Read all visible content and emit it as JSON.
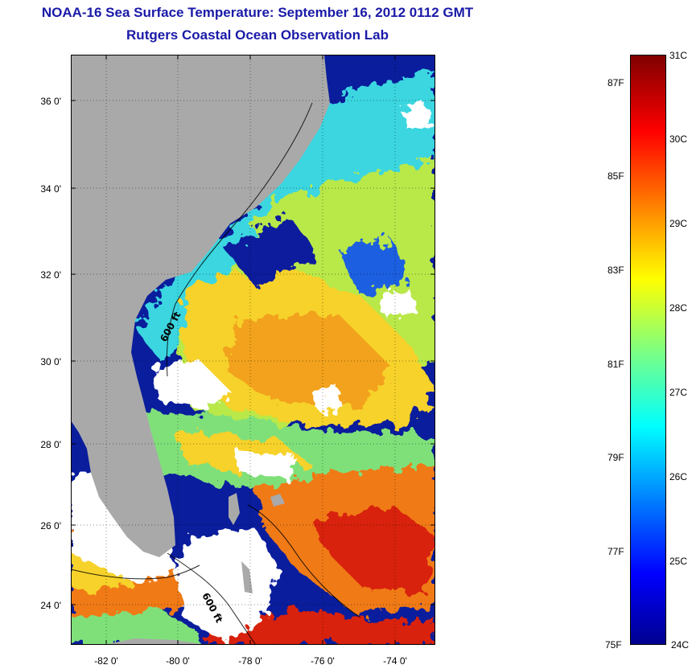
{
  "title": {
    "line1": "NOAA-16 Sea Surface Temperature:  September 16, 2012 0112 GMT",
    "line2": "Rutgers Coastal Ocean Observation Lab"
  },
  "map": {
    "lat_ticks": [
      "36 0'",
      "34 0'",
      "32 0'",
      "30 0'",
      "28 0'",
      "26 0'",
      "24 0'"
    ],
    "lon_ticks": [
      "-82 0'",
      "-80 0'",
      "-78 0'",
      "-76 0'",
      "-74 0'"
    ],
    "contour_labels": [
      "600 ft",
      "600 ft"
    ],
    "colors": {
      "land": "#a9a9a9",
      "cloud": "#ffffff",
      "cold": "#0a1d9c",
      "warm": "#f2a21a",
      "hot": "#d8210d"
    }
  },
  "colorbar": {
    "celsius": [
      "31C",
      "30C",
      "29C",
      "28C",
      "27C",
      "26C",
      "25C",
      "24C"
    ],
    "fahrenheit": [
      "87F",
      "85F",
      "83F",
      "81F",
      "79F",
      "77F",
      "75F"
    ],
    "range_c": [
      24,
      31
    ]
  }
}
